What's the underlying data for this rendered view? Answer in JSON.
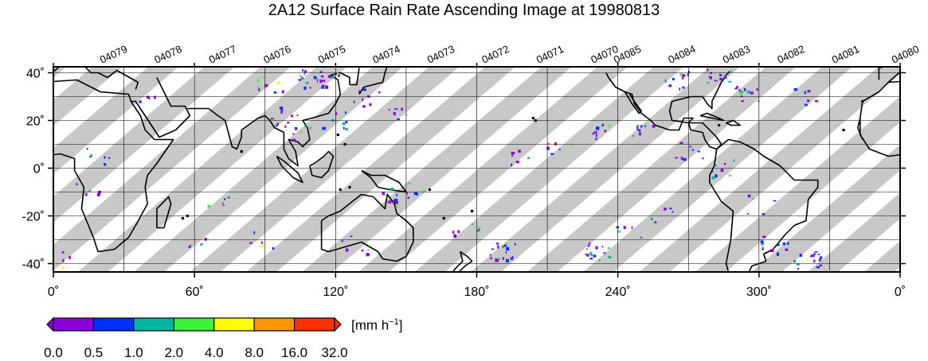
{
  "title": "2A12 Surface Rain Rate Ascending Image at 19980813",
  "latitude_labels": [
    "40˚",
    "20˚",
    "0˚",
    "-20˚",
    "-40˚"
  ],
  "longitude_labels": [
    "0˚",
    "60˚",
    "120˚",
    "180˚",
    "240˚",
    "300˚",
    "0˚"
  ],
  "orbit_labels": [
    "04079",
    "04078",
    "04077",
    "04076",
    "04075",
    "04074",
    "04073",
    "04072",
    "04071",
    "04070",
    "04085",
    "04084",
    "04083",
    "04082",
    "04081",
    "04080"
  ],
  "colorbar": {
    "unit_prefix": "[mm h",
    "unit_exponent": "−1",
    "unit_suffix": "]",
    "tick_labels": [
      "0.0",
      "0.5",
      "1.0",
      "2.0",
      "4.0",
      "8.0",
      "16.0",
      "32.0"
    ],
    "colors": [
      "#8c00dc",
      "#0032ff",
      "#00b4a0",
      "#3cf03c",
      "#ffff00",
      "#ff9600",
      "#ff3200"
    ],
    "under_color": "#8c00dc",
    "over_color": "#ff3200"
  },
  "colors": {
    "swath": "#c8c8c8",
    "land_outline": "#000000",
    "grid": "#000000"
  }
}
